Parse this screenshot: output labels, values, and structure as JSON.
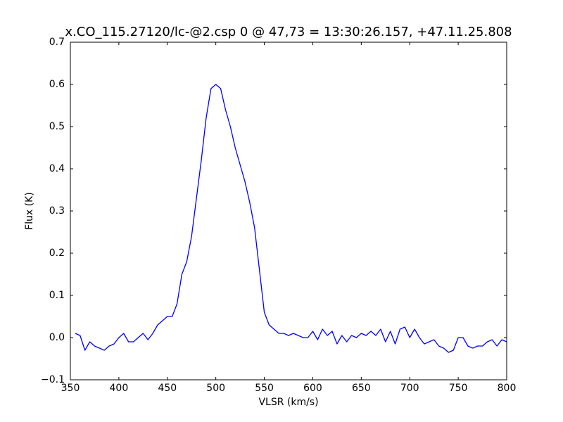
{
  "chart_data": {
    "type": "line",
    "title": "x.CO_115.27120/lc-@2.csp 0 @ 47,73 = 13:30:26.157, +47.11.25.808",
    "x_label": "VLSR (km/s)",
    "y_label": "Flux (K)",
    "x": [
      355,
      360,
      365,
      370,
      375,
      380,
      385,
      390,
      395,
      400,
      405,
      410,
      415,
      420,
      425,
      430,
      435,
      440,
      445,
      450,
      455,
      460,
      465,
      470,
      475,
      480,
      485,
      490,
      495,
      500,
      505,
      510,
      515,
      520,
      525,
      530,
      535,
      540,
      545,
      550,
      555,
      560,
      565,
      570,
      575,
      580,
      585,
      590,
      595,
      600,
      605,
      610,
      615,
      620,
      625,
      630,
      635,
      640,
      645,
      650,
      655,
      660,
      665,
      670,
      675,
      680,
      685,
      690,
      695,
      700,
      705,
      710,
      715,
      720,
      725,
      730,
      735,
      740,
      745,
      750,
      755,
      760,
      765,
      770,
      775,
      780,
      785,
      790,
      795,
      800
    ],
    "series": [
      {
        "color": "#0000ff",
        "values": [
          0.01,
          0.005,
          -0.03,
          -0.01,
          -0.02,
          -0.025,
          -0.03,
          -0.02,
          -0.015,
          0.0,
          0.01,
          -0.01,
          -0.01,
          0.0,
          0.01,
          -0.005,
          0.01,
          0.03,
          0.04,
          0.05,
          0.05,
          0.08,
          0.15,
          0.18,
          0.24,
          0.33,
          0.42,
          0.52,
          0.59,
          0.6,
          0.59,
          0.54,
          0.5,
          0.45,
          0.41,
          0.37,
          0.32,
          0.26,
          0.16,
          0.06,
          0.03,
          0.02,
          0.01,
          0.01,
          0.005,
          0.01,
          0.005,
          0.0,
          0.0,
          0.015,
          -0.005,
          0.02,
          0.005,
          0.015,
          -0.015,
          0.005,
          -0.01,
          0.005,
          0.0,
          0.01,
          0.005,
          0.015,
          0.005,
          0.02,
          -0.01,
          0.015,
          -0.015,
          0.02,
          0.025,
          0.0,
          0.02,
          0.0,
          -0.015,
          -0.01,
          -0.005,
          -0.02,
          -0.025,
          -0.035,
          -0.03,
          0.0,
          0.0,
          -0.02,
          -0.025,
          -0.02,
          -0.02,
          -0.01,
          -0.005,
          -0.02,
          -0.005,
          -0.01
        ]
      }
    ],
    "xlim": [
      350,
      800
    ],
    "xticks": [
      350,
      400,
      450,
      500,
      550,
      600,
      650,
      700,
      750,
      800
    ],
    "ylim": [
      -0.1,
      0.7
    ],
    "yticks": [
      {
        "value": -0.1,
        "label": "−0.1"
      },
      {
        "value": 0,
        "label": "0.0"
      },
      0.1,
      0.2,
      0.3,
      0.4,
      0.5,
      0.6,
      0.7
    ],
    "grid": false
  }
}
